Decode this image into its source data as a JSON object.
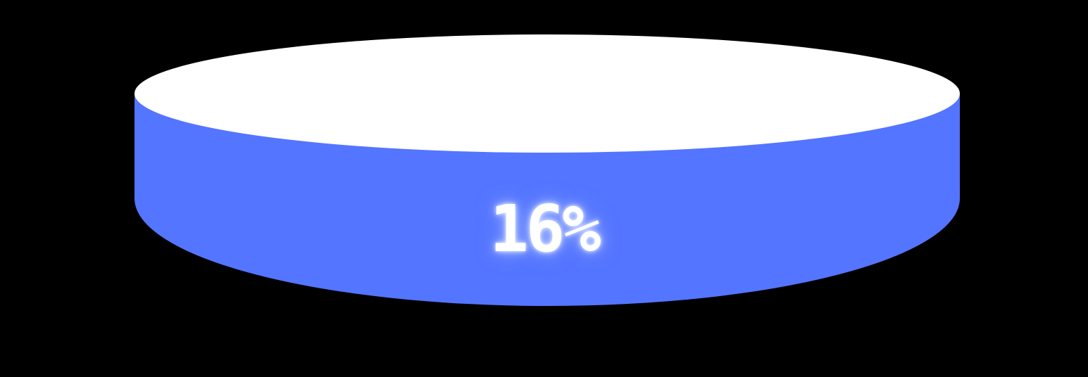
{
  "progress": {
    "value_percent": 16,
    "label": "16%"
  },
  "colors": {
    "background": "#000000",
    "cylinder_body": "#5475FF",
    "cylinder_top": "#FFFFFF",
    "label_text": "#FFFFFF"
  }
}
